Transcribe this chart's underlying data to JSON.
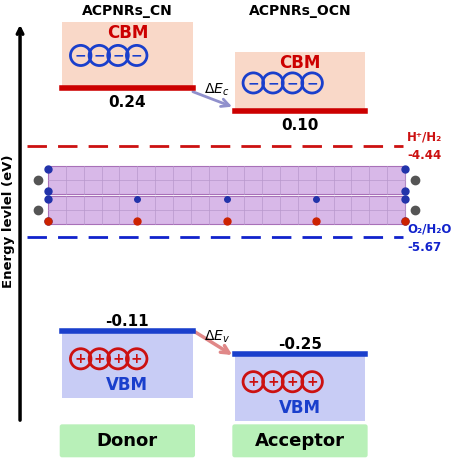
{
  "title_left": "ACPNRs_CN",
  "title_right": "ACPNRs_OCN",
  "cbm_left_value": "0.24",
  "cbm_right_value": "0.10",
  "vbm_left_value": "-0.11",
  "vbm_right_value": "-0.25",
  "h2_label": "H⁺/H₂",
  "h2_value": "-4.44",
  "o2_label": "O₂/H₂O",
  "o2_value": "-5.67",
  "donor_label": "Donor",
  "acceptor_label": "Acceptor",
  "cbm_box_color": "#f9d8c8",
  "vbm_box_color": "#c8ccf5",
  "cbm_line_color": "#cc0000",
  "vbm_line_color": "#1a3fcc",
  "h2_dashed_color": "#cc1111",
  "o2_dashed_color": "#1122cc",
  "minus_circle_color": "#1a3fcc",
  "plus_circle_color": "#cc1111",
  "donor_box_color": "#b8f0b8",
  "acceptor_box_color": "#b8f0b8",
  "arrow_cbm_color": "#9090cc",
  "arrow_vbm_color": "#e08888",
  "mol_fill_color": "#d8b8e8",
  "mol_edge_color": "#a870b8",
  "mol_grid_color": "#b898cc",
  "atom_blue_color": "#2233aa",
  "atom_gray_color": "#555555",
  "atom_red_color": "#cc2200"
}
